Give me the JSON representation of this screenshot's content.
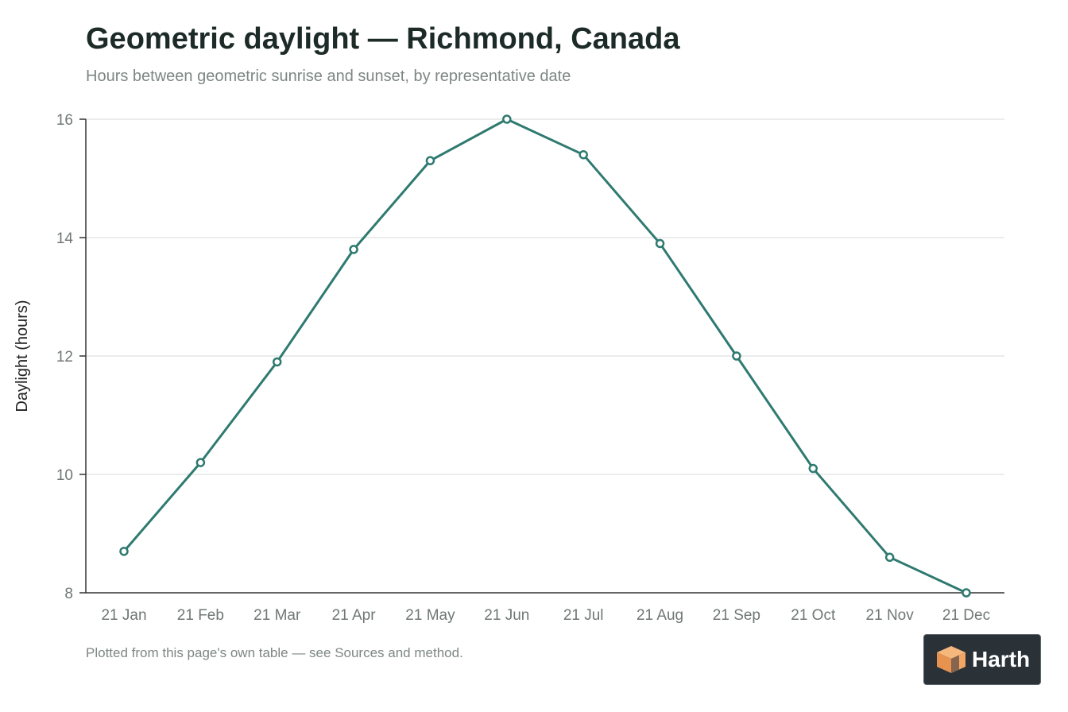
{
  "chart_data": {
    "type": "line",
    "title": "Geometric daylight — Richmond, Canada",
    "subtitle": "Hours between geometric sunrise and sunset, by representative date",
    "xlabel": "",
    "ylabel": "Daylight (hours)",
    "categories": [
      "21 Jan",
      "21 Feb",
      "21 Mar",
      "21 Apr",
      "21 May",
      "21 Jun",
      "21 Jul",
      "21 Aug",
      "21 Sep",
      "21 Oct",
      "21 Nov",
      "21 Dec"
    ],
    "values": [
      8.7,
      10.2,
      11.9,
      13.8,
      15.3,
      16.0,
      15.4,
      13.9,
      12.0,
      10.1,
      8.6,
      8.0
    ],
    "ylim": [
      8,
      16
    ],
    "yticks": [
      8,
      10,
      12,
      14,
      16
    ],
    "grid": true,
    "colors": {
      "line": "#2f7a70",
      "grid": "#e4e7e6",
      "axis": "#333333"
    }
  },
  "footnote": "Plotted from this page's own table — see Sources and method.",
  "logo": {
    "name": "Harth",
    "icon": "cube-icon"
  }
}
